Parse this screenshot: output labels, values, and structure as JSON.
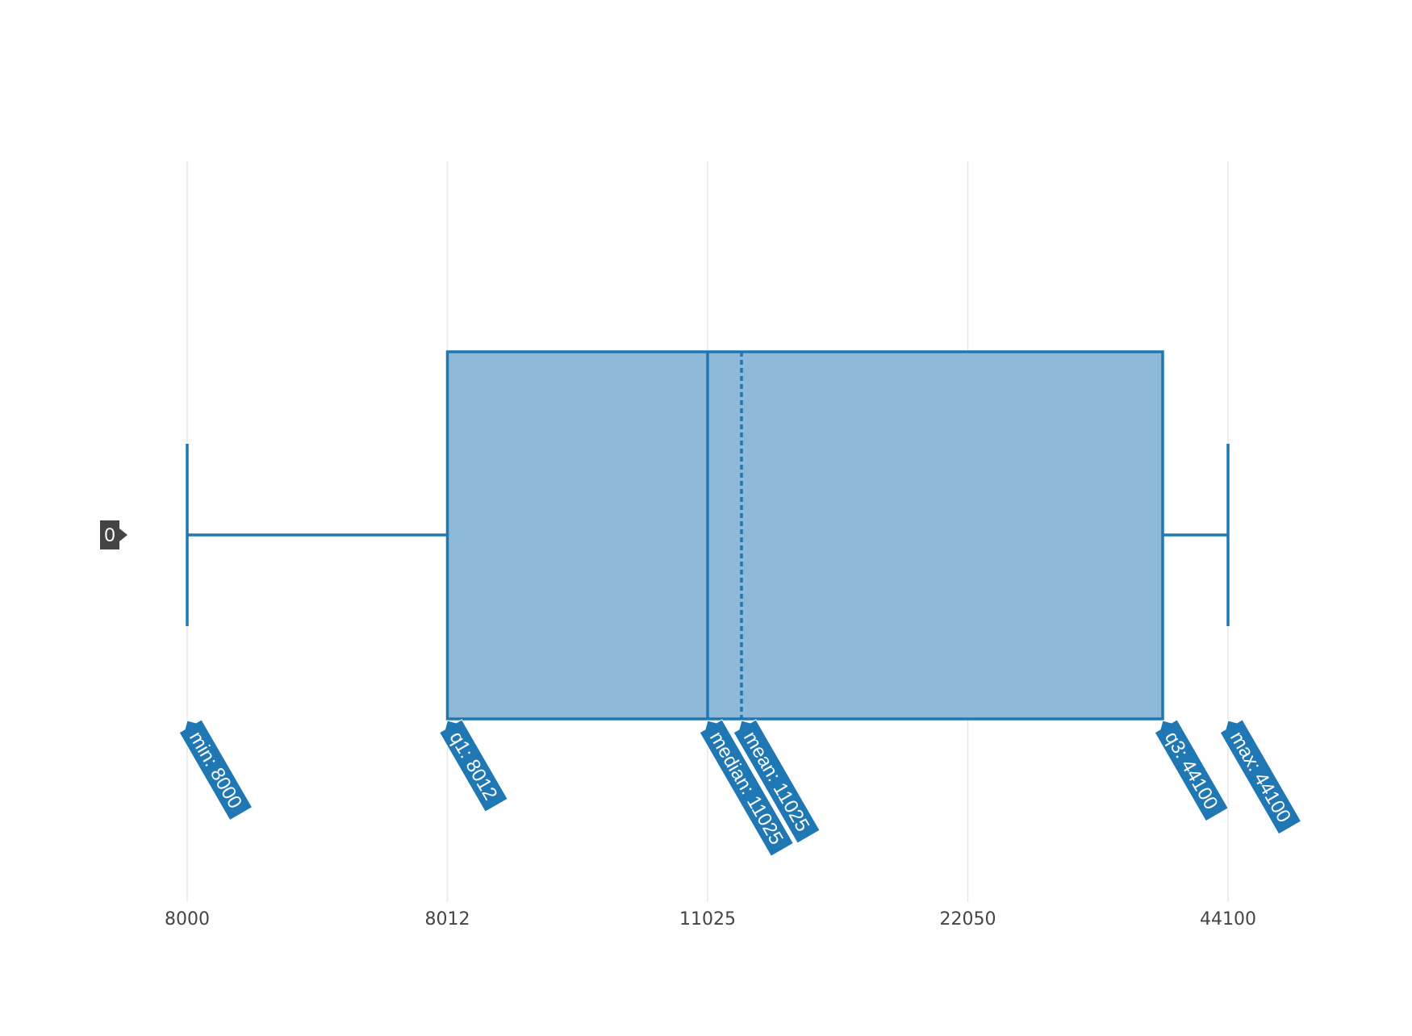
{
  "chart_data": {
    "type": "box",
    "orientation": "horizontal",
    "category": "0",
    "x_tick_labels": [
      "8000",
      "8012",
      "11025",
      "22050",
      "44100"
    ],
    "stats": {
      "min": 8000,
      "q1": 8012,
      "median": 11025,
      "mean": 11025,
      "q3": 44100,
      "max": 44100
    },
    "hover_labels": [
      {
        "key": "min",
        "text": "min: 8000"
      },
      {
        "key": "q1",
        "text": "q1: 8012"
      },
      {
        "key": "median",
        "text": "median: 11025"
      },
      {
        "key": "mean",
        "text": "mean: 11025"
      },
      {
        "key": "q3",
        "text": "q3: 44100"
      },
      {
        "key": "max",
        "text": "max: 44100"
      }
    ],
    "grid": true,
    "legend": "none",
    "colors": {
      "box_line": "#1f77b4",
      "box_fill": "#8fb9d8",
      "hover_label": "#1f77b4",
      "category_label": "#444444",
      "grid": "#e8e8e8"
    }
  }
}
